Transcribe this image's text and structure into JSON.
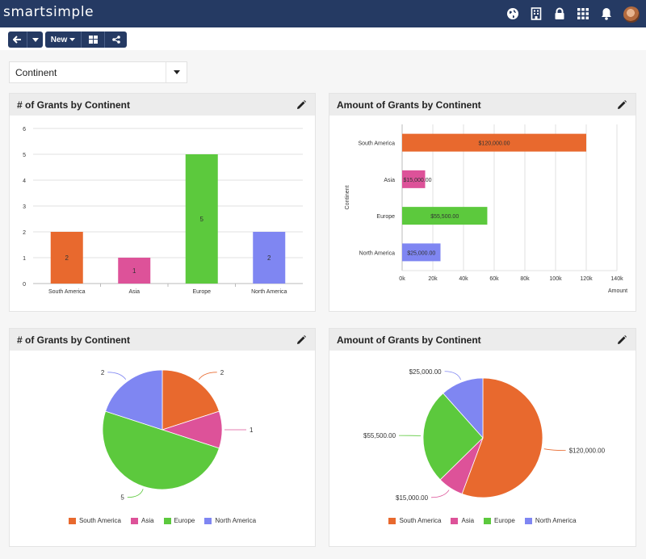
{
  "app": {
    "brand": "smartsimple"
  },
  "toolbar": {
    "new_label": "New"
  },
  "filter": {
    "selected": "Continent"
  },
  "colors": {
    "South America": "#e8692e",
    "Asia": "#dd5299",
    "Europe": "#5cc93d",
    "North America": "#7f86f2"
  },
  "panels": {
    "count_bar_title": "# of Grants by Continent",
    "amount_bar_title": "Amount of Grants by Continent",
    "count_pie_title": "# of Grants by Continent",
    "amount_pie_title": "Amount of Grants by Continent"
  },
  "legend": {
    "items": [
      "South America",
      "Asia",
      "Europe",
      "North America"
    ]
  },
  "chart_data": [
    {
      "type": "bar",
      "title": "# of Grants by Continent",
      "categories": [
        "South America",
        "Asia",
        "Europe",
        "North America"
      ],
      "values": [
        2,
        1,
        5,
        2
      ],
      "data_labels": [
        "2",
        "1",
        "5",
        "2"
      ],
      "ylim": [
        0,
        6
      ],
      "yticks": [
        "0",
        "1",
        "2",
        "3",
        "4",
        "5",
        "6"
      ],
      "grid": true
    },
    {
      "type": "bar",
      "orientation": "horizontal",
      "title": "Amount of Grants by Continent",
      "categories": [
        "South America",
        "Asia",
        "Europe",
        "North America"
      ],
      "values": [
        120000,
        15000,
        55500,
        25000
      ],
      "data_labels": [
        "$120,000.00",
        "$15,000.00",
        "$55,500.00",
        "$25,000.00"
      ],
      "xlabel": "Amount",
      "ylabel": "Continent",
      "xlim": [
        0,
        140000
      ],
      "xticks": [
        "0k",
        "20k",
        "40k",
        "60k",
        "80k",
        "100k",
        "120k",
        "140k"
      ],
      "grid": true
    },
    {
      "type": "pie",
      "title": "# of Grants by Continent",
      "categories": [
        "South America",
        "Asia",
        "Europe",
        "North America"
      ],
      "values": [
        2,
        1,
        5,
        2
      ],
      "data_labels": [
        "2",
        "1",
        "5",
        "2"
      ],
      "legend": "bottom"
    },
    {
      "type": "pie",
      "title": "Amount of Grants by Continent",
      "categories": [
        "South America",
        "Asia",
        "Europe",
        "North America"
      ],
      "values": [
        120000,
        15000,
        55500,
        25000
      ],
      "data_labels": [
        "$120,000.00",
        "$15,000.00",
        "$55,500.00",
        "$25,000.00"
      ],
      "legend": "bottom"
    }
  ]
}
